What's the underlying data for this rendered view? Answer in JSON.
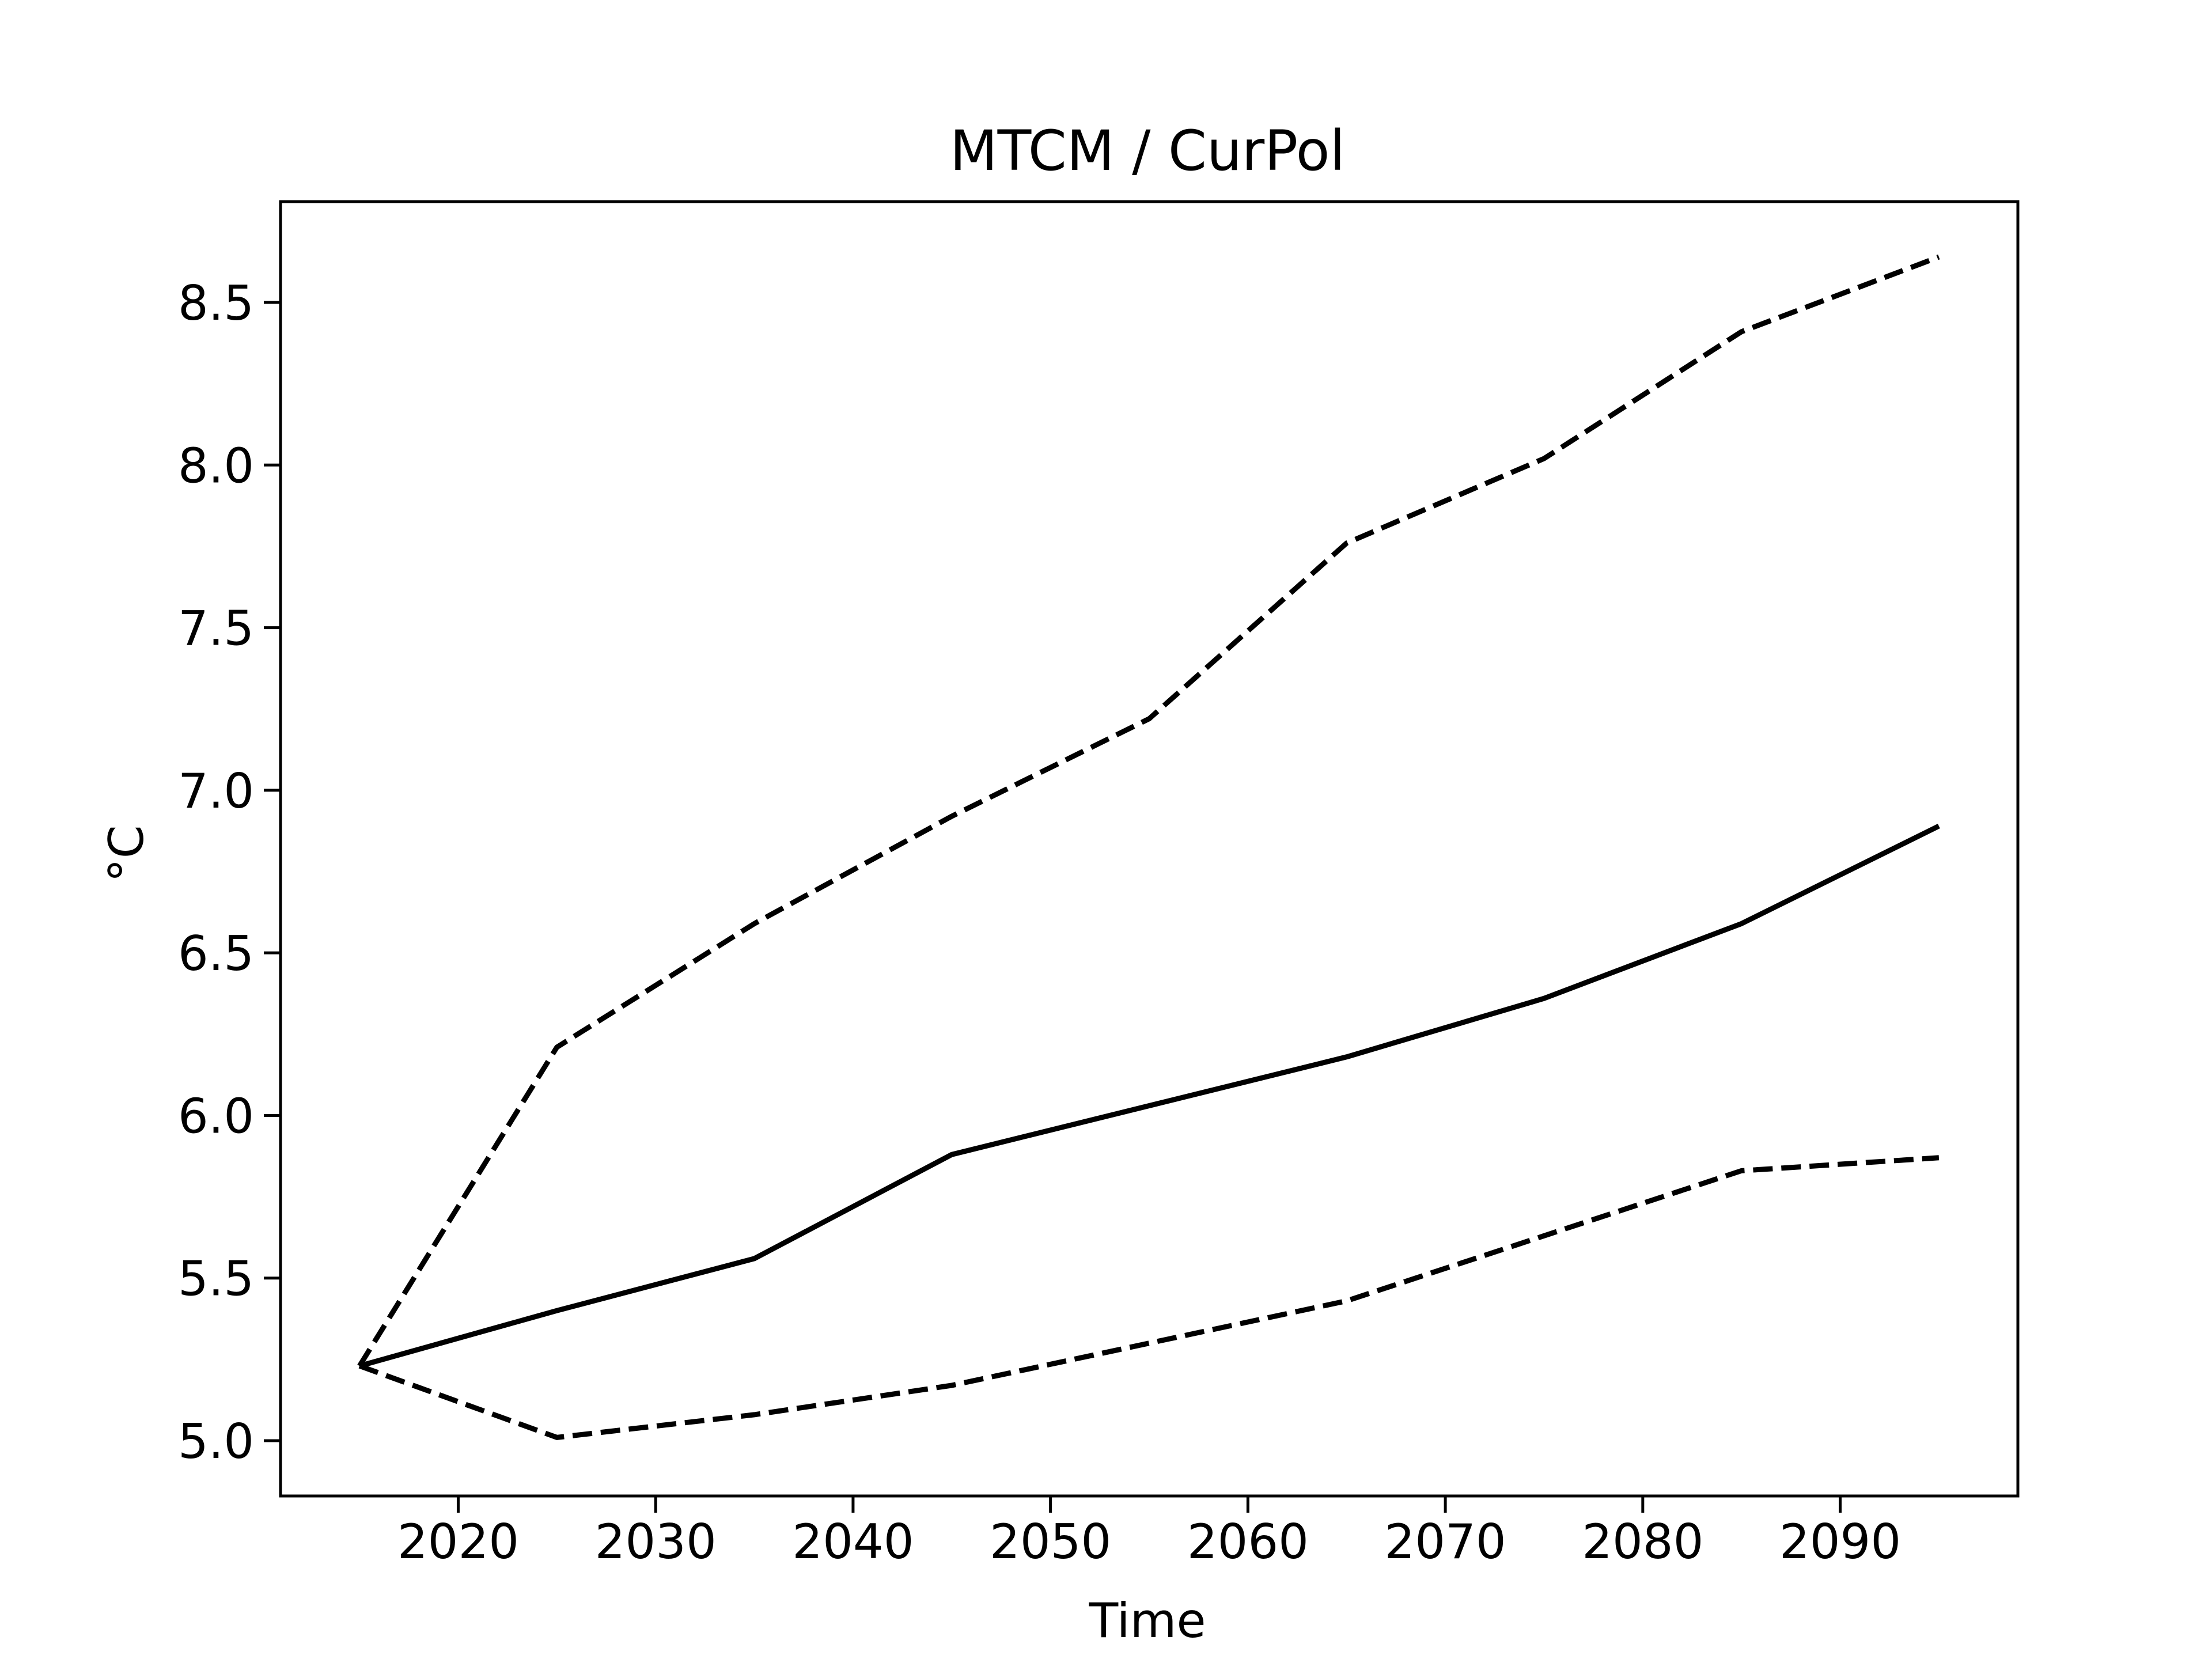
{
  "chart_data": {
    "type": "line",
    "title": "MTCM / CurPol",
    "xlabel": "Time",
    "ylabel": "°C",
    "xlim": [
      2011,
      2099
    ],
    "ylim": [
      4.83,
      8.81
    ],
    "xticks": [
      2020,
      2030,
      2040,
      2050,
      2060,
      2070,
      2080,
      2090
    ],
    "xtick_labels": [
      "2020",
      "2030",
      "2040",
      "2050",
      "2060",
      "2070",
      "2080",
      "2090"
    ],
    "yticks": [
      5.0,
      5.5,
      6.0,
      6.5,
      7.0,
      7.5,
      8.0,
      8.5
    ],
    "ytick_labels": [
      "5.0",
      "5.5",
      "6.0",
      "6.5",
      "7.0",
      "7.5",
      "8.0",
      "8.5"
    ],
    "grid": false,
    "legend": "none",
    "x": [
      2015,
      2025,
      2035,
      2045,
      2055,
      2065,
      2075,
      2085,
      2095
    ],
    "series": [
      {
        "style": "solid",
        "color": "#000000",
        "values": [
          5.23,
          5.4,
          5.56,
          5.88,
          6.03,
          6.18,
          6.36,
          6.59,
          6.89
        ]
      },
      {
        "style": "dashed",
        "color": "#000000",
        "values": [
          5.23,
          6.21,
          6.59,
          6.92,
          7.22,
          7.76,
          8.02,
          8.41,
          8.64
        ]
      },
      {
        "style": "dashed",
        "color": "#000000",
        "values": [
          5.23,
          5.01,
          5.08,
          5.17,
          5.3,
          5.43,
          5.63,
          5.83,
          5.87
        ]
      }
    ]
  }
}
